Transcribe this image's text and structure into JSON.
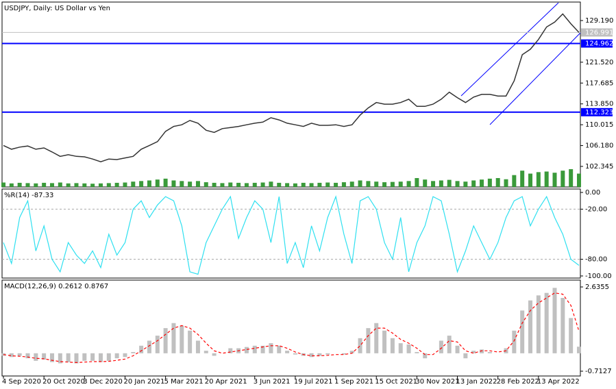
{
  "chart_data": [
    {
      "type": "price",
      "title": "USDJPY, Daily:  US Dollar vs Yen",
      "color": "#333333",
      "volume_color": "#3a9a3a",
      "values": [
        106.2,
        105.5,
        105.9,
        106.1,
        105.5,
        105.75,
        105.0,
        104.2,
        104.5,
        104.2,
        104.1,
        103.7,
        103.2,
        103.7,
        103.6,
        103.9,
        104.2,
        105.5,
        106.2,
        106.9,
        108.8,
        109.7,
        110.0,
        110.8,
        110.3,
        109.0,
        108.6,
        109.3,
        109.5,
        109.7,
        110.0,
        110.3,
        110.5,
        111.3,
        110.9,
        110.3,
        110.0,
        109.7,
        110.3,
        109.9,
        109.9,
        110.0,
        109.7,
        110.0,
        111.8,
        113.1,
        114.1,
        113.8,
        113.8,
        114.1,
        114.7,
        113.4,
        113.4,
        113.8,
        114.7,
        116.0,
        115.0,
        114.1,
        115.1,
        115.6,
        115.6,
        115.3,
        115.3,
        118.1,
        122.9,
        123.9,
        125.7,
        128.0,
        128.9,
        130.4,
        128.6,
        127.0
      ],
      "volume": [
        15,
        12,
        14,
        13,
        12,
        14,
        13,
        15,
        12,
        13,
        12,
        11,
        12,
        13,
        14,
        15,
        18,
        20,
        22,
        25,
        28,
        22,
        20,
        18,
        20,
        16,
        14,
        13,
        15,
        14,
        13,
        14,
        15,
        18,
        14,
        13,
        12,
        14,
        13,
        14,
        15,
        14,
        16,
        18,
        22,
        20,
        18,
        16,
        17,
        18,
        20,
        30,
        25,
        20,
        22,
        24,
        20,
        18,
        22,
        25,
        28,
        30,
        26,
        40,
        55,
        45,
        50,
        52,
        48,
        55,
        60,
        45
      ],
      "ylim": [
        98.56,
        132.59
      ],
      "yticks": [
        {
          "value": 129.19,
          "label": "129.190"
        },
        {
          "value": 121.52,
          "label": "121.520"
        },
        117.685,
        {
          "value": 113.85,
          "label": "113.850"
        },
        110.015,
        {
          "value": 106.18,
          "label": "106.180"
        },
        102.345
      ],
      "hlines": [
        124.962,
        112.323
      ],
      "hline_color": "#0000ff",
      "last_price": 126.991
    },
    {
      "type": "line",
      "title": "%R(14) -87.33",
      "color": "#2ee0f0",
      "values": [
        -60,
        -85,
        -30,
        -10,
        -70,
        -40,
        -80,
        -95,
        -60,
        -75,
        -85,
        -70,
        -90,
        -50,
        -75,
        -60,
        -20,
        -10,
        -30,
        -15,
        -5,
        -10,
        -40,
        -95,
        -98,
        -60,
        -40,
        -20,
        -5,
        -55,
        -30,
        -10,
        -20,
        -60,
        -5,
        -85,
        -60,
        -90,
        -40,
        -70,
        -30,
        -5,
        -50,
        -85,
        -10,
        -5,
        -20,
        -60,
        -80,
        -30,
        -95,
        -60,
        -40,
        -5,
        -10,
        -50,
        -95,
        -70,
        -40,
        -60,
        -80,
        -60,
        -30,
        -10,
        -5,
        -40,
        -20,
        -5,
        -30,
        -50,
        -80,
        -87.33
      ],
      "ylim": [
        -102.5,
        4.1
      ],
      "yticks": [
        {
          "value": 0,
          "label": "0.00"
        },
        {
          "value": -20,
          "label": "-20.00"
        },
        {
          "value": -80,
          "label": "-80.00"
        },
        {
          "value": -100,
          "label": "-100.00"
        }
      ],
      "levels": [
        -20,
        -80
      ]
    },
    {
      "type": "macd",
      "title": "MACD(12,26,9) 0.2612 0.8767",
      "color": "#c0c0c0",
      "signal_color": "#ff0000",
      "values": [
        -0.1,
        -0.15,
        -0.1,
        -0.2,
        -0.3,
        -0.25,
        -0.35,
        -0.4,
        -0.35,
        -0.4,
        -0.3,
        -0.3,
        -0.35,
        -0.3,
        -0.2,
        -0.15,
        0.05,
        0.3,
        0.5,
        0.7,
        1.0,
        1.2,
        1.1,
        0.9,
        0.5,
        0.1,
        -0.1,
        0.0,
        0.2,
        0.2,
        0.25,
        0.3,
        0.3,
        0.4,
        0.3,
        0.1,
        -0.05,
        -0.1,
        -0.15,
        -0.1,
        -0.05,
        0.0,
        -0.05,
        0.1,
        0.6,
        1.0,
        1.2,
        0.9,
        0.6,
        0.4,
        0.35,
        0.05,
        -0.2,
        0.0,
        0.5,
        0.7,
        0.3,
        -0.2,
        0.1,
        0.15,
        0.05,
        0.0,
        0.2,
        0.9,
        1.7,
        2.1,
        2.3,
        2.4,
        2.6,
        2.2,
        1.4,
        0.2612
      ],
      "signal": [
        -0.05,
        -0.1,
        -0.12,
        -0.15,
        -0.2,
        -0.22,
        -0.28,
        -0.33,
        -0.35,
        -0.37,
        -0.35,
        -0.33,
        -0.33,
        -0.32,
        -0.28,
        -0.23,
        -0.1,
        0.1,
        0.3,
        0.5,
        0.75,
        1.0,
        1.1,
        1.0,
        0.75,
        0.4,
        0.1,
        0.0,
        0.05,
        0.1,
        0.15,
        0.2,
        0.25,
        0.3,
        0.3,
        0.2,
        0.05,
        -0.05,
        -0.1,
        -0.1,
        -0.08,
        -0.05,
        -0.05,
        0.0,
        0.3,
        0.7,
        1.0,
        1.0,
        0.8,
        0.55,
        0.4,
        0.2,
        -0.05,
        -0.05,
        0.2,
        0.5,
        0.45,
        0.1,
        0.0,
        0.1,
        0.1,
        0.05,
        0.1,
        0.5,
        1.2,
        1.7,
        2.0,
        2.2,
        2.4,
        2.35,
        1.9,
        0.8767
      ],
      "ylim": [
        -0.903,
        2.908
      ],
      "yticks": [
        2.6355,
        -0.7127
      ],
      "categories": [
        "4 Sep 2020",
        null,
        null,
        null,
        null,
        "20 Oct 2020",
        null,
        null,
        null,
        null,
        "3 Dec 2020",
        null,
        null,
        null,
        null,
        "20 Jan 2021",
        null,
        null,
        null,
        null,
        "5 Mar 2021",
        null,
        null,
        null,
        null,
        "20 Apr 2021",
        null,
        null,
        null,
        null,
        null,
        "3 Jun 2021",
        null,
        null,
        null,
        null,
        "19 Jul 2021",
        null,
        null,
        null,
        null,
        "1 Sep 2021",
        null,
        null,
        null,
        null,
        "15 Oct 2021",
        null,
        null,
        null,
        null,
        "30 Nov 2021",
        null,
        null,
        null,
        null,
        "13 Jan 2022",
        null,
        null,
        null,
        null,
        "28 Feb 2022",
        null,
        null,
        null,
        null,
        "13 Apr 2022",
        null,
        null,
        null,
        null,
        null
      ]
    }
  ]
}
